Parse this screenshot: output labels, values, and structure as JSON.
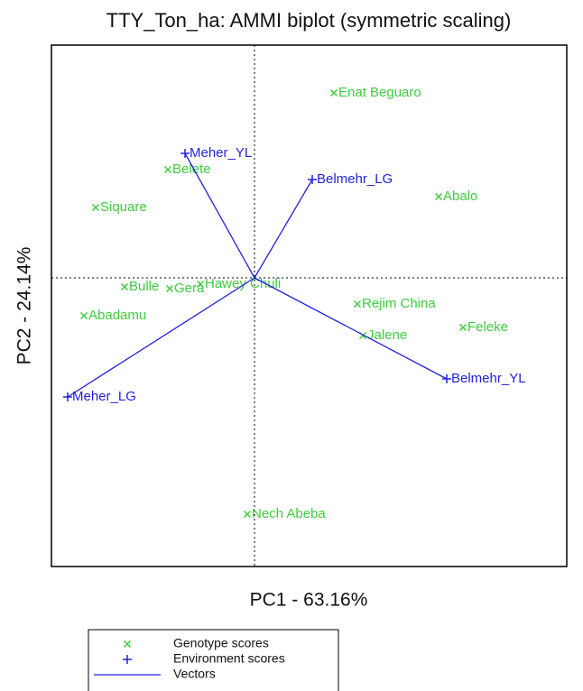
{
  "chart_data": {
    "type": "biplot",
    "title": "TTY_Ton_ha: AMMI biplot (symmetric scaling)",
    "xlabel": "PC1 - 63.16%",
    "ylabel": "PC2 - 24.14%",
    "xlim": [
      -2.25,
      3.46
    ],
    "ylim": [
      -3.2,
      2.58
    ],
    "series": [
      {
        "name": "Genotype scores",
        "color": "#3fcc3f",
        "marker": "x",
        "labels": [
          "Enat Beguaro",
          "Belete",
          "Abalo",
          "Siquare",
          "Bulle",
          "Gera",
          "Hawey Chuli",
          "Abadamu",
          "Rejim China",
          "Jalene",
          "Feleke",
          "Nech Abeba"
        ],
        "x": [
          0.88,
          -0.96,
          2.04,
          -1.76,
          -1.44,
          -0.94,
          -0.6,
          -1.89,
          1.14,
          1.2,
          2.31,
          -0.08
        ],
        "y": [
          2.05,
          1.2,
          0.9,
          0.78,
          -0.1,
          -0.12,
          -0.07,
          -0.42,
          -0.29,
          -0.64,
          -0.55,
          -2.62
        ]
      },
      {
        "name": "Environment scores",
        "color": "#2222dd",
        "marker": "+",
        "labels": [
          "Meher_YL",
          "Belmehr_LG",
          "Meher_LG",
          "Belmehr_YL"
        ],
        "x": [
          -0.77,
          0.64,
          -2.07,
          2.13
        ],
        "y": [
          1.38,
          1.09,
          -1.32,
          -1.12
        ]
      }
    ],
    "vectors": {
      "name": "Vectors",
      "color": "#2222dd"
    }
  }
}
